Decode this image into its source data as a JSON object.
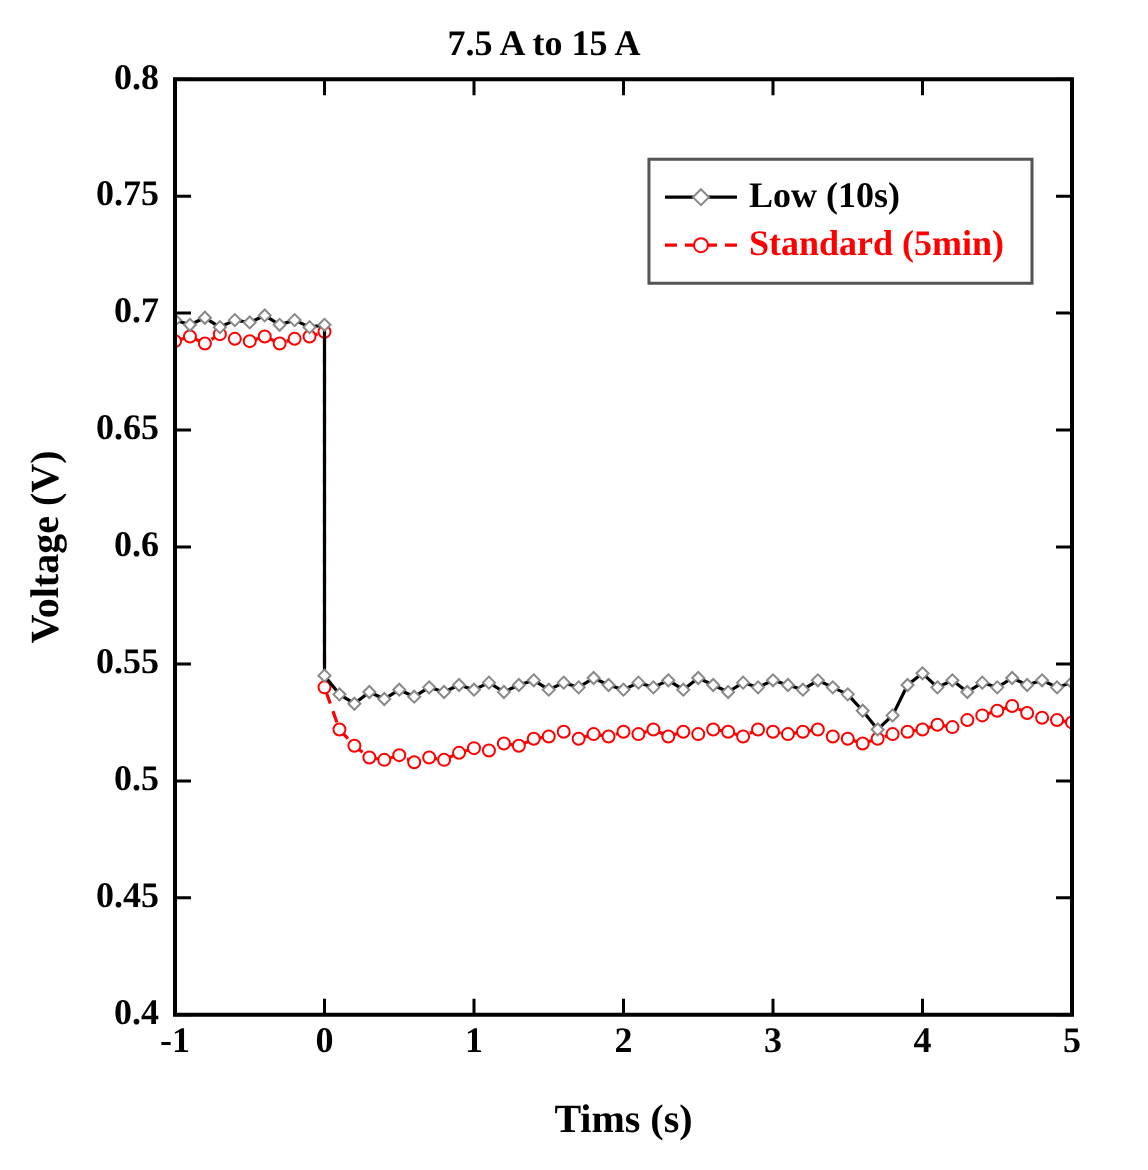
{
  "chart_data": {
    "type": "line",
    "title": "7.5 A to 15 A",
    "xlabel": "Tims (s)",
    "ylabel": "Voltage (V)",
    "x": [
      -1.0,
      -0.9,
      -0.8,
      -0.7,
      -0.6,
      -0.5,
      -0.4,
      -0.3,
      -0.2,
      -0.1,
      0,
      0,
      0.1,
      0.2,
      0.3,
      0.4,
      0.5,
      0.6,
      0.7,
      0.8,
      0.9,
      1.0,
      1.1,
      1.2,
      1.3,
      1.4,
      1.5,
      1.6,
      1.7,
      1.8,
      1.9,
      2.0,
      2.1,
      2.2,
      2.3,
      2.4,
      2.5,
      2.6,
      2.7,
      2.8,
      2.9,
      3.0,
      3.1,
      3.2,
      3.3,
      3.4,
      3.5,
      3.6,
      3.7,
      3.8,
      3.9,
      4.0,
      4.1,
      4.2,
      4.3,
      4.4,
      4.5,
      4.6,
      4.7,
      4.8,
      4.9,
      5.0
    ],
    "series": [
      {
        "name": "Low (10s)",
        "color": "#000000",
        "marker": "diamond",
        "line_style": "solid",
        "values": [
          0.697,
          0.695,
          0.698,
          0.694,
          0.697,
          0.696,
          0.699,
          0.695,
          0.697,
          0.694,
          0.695,
          0.545,
          0.537,
          0.533,
          0.538,
          0.535,
          0.539,
          0.536,
          0.54,
          0.538,
          0.541,
          0.539,
          0.542,
          0.538,
          0.541,
          0.543,
          0.539,
          0.542,
          0.54,
          0.544,
          0.541,
          0.539,
          0.542,
          0.54,
          0.543,
          0.539,
          0.544,
          0.541,
          0.538,
          0.542,
          0.54,
          0.543,
          0.541,
          0.539,
          0.543,
          0.54,
          0.537,
          0.53,
          0.522,
          0.528,
          0.541,
          0.546,
          0.54,
          0.543,
          0.538,
          0.542,
          0.54,
          0.544,
          0.541,
          0.543,
          0.54,
          0.542
        ]
      },
      {
        "name": "Standard (5min)",
        "color": "#ff0000",
        "marker": "circle",
        "line_style": "dashed",
        "values": [
          0.688,
          0.69,
          0.687,
          0.691,
          0.689,
          0.688,
          0.69,
          0.687,
          0.689,
          0.69,
          0.692,
          0.54,
          0.522,
          0.515,
          0.51,
          0.509,
          0.511,
          0.508,
          0.51,
          0.509,
          0.512,
          0.514,
          0.513,
          0.516,
          0.515,
          0.518,
          0.519,
          0.521,
          0.518,
          0.52,
          0.519,
          0.521,
          0.52,
          0.522,
          0.519,
          0.521,
          0.52,
          0.522,
          0.521,
          0.519,
          0.522,
          0.521,
          0.52,
          0.521,
          0.522,
          0.519,
          0.518,
          0.516,
          0.518,
          0.52,
          0.521,
          0.522,
          0.524,
          0.523,
          0.526,
          0.528,
          0.53,
          0.532,
          0.529,
          0.527,
          0.526,
          0.525
        ]
      }
    ],
    "xlim": [
      -1,
      5
    ],
    "xticks": [
      -1,
      0,
      1,
      2,
      3,
      4,
      5
    ],
    "ylim": [
      0.4,
      0.8
    ],
    "yticks": [
      0.4,
      0.45,
      0.5,
      0.55,
      0.6,
      0.65,
      0.7,
      0.75,
      0.8
    ],
    "grid": false,
    "legend": "top right"
  }
}
